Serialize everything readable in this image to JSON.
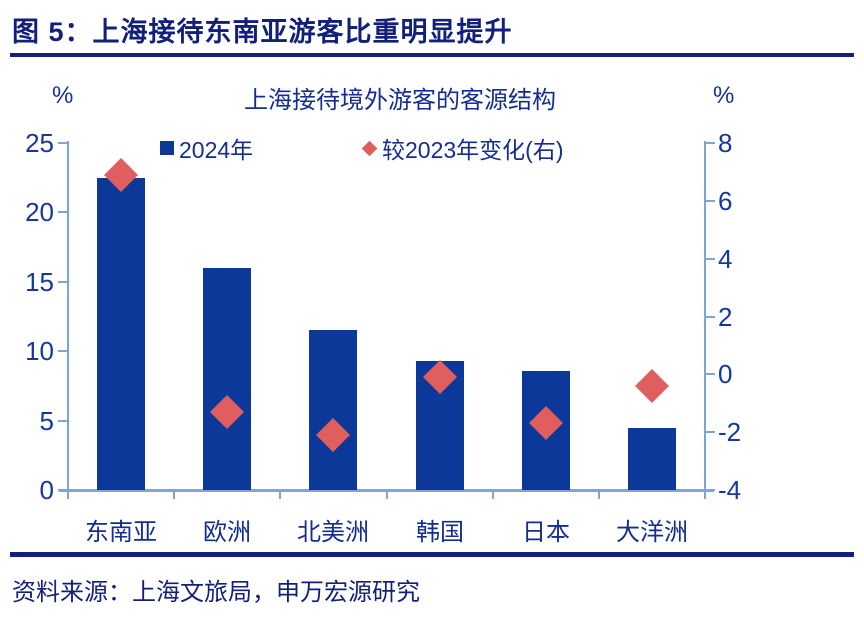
{
  "figure": {
    "title": "图 5：上海接待东南亚游客比重明显提升",
    "source": "资料来源：上海文旅局，申万宏源研究"
  },
  "chart_data": {
    "type": "bar",
    "subtype": "bar-with-scatter-diamond-combo",
    "title": "上海接待境外游客的客源结构",
    "categories": [
      "东南亚",
      "欧洲",
      "北美洲",
      "韩国",
      "日本",
      "大洋洲"
    ],
    "series": [
      {
        "name": "2024年",
        "type": "bar",
        "axis": "left",
        "values": [
          22.5,
          16.0,
          11.5,
          9.3,
          8.6,
          4.5
        ]
      },
      {
        "name": "较2023年变化(右)",
        "type": "scatter",
        "marker": "diamond",
        "axis": "right",
        "values": [
          6.9,
          -1.3,
          -2.1,
          -0.1,
          -1.7,
          -0.4
        ]
      }
    ],
    "left_axis": {
      "label": "%",
      "ticks": [
        0,
        5,
        10,
        15,
        20,
        25
      ],
      "range": [
        0,
        25
      ]
    },
    "right_axis": {
      "label": "%",
      "ticks": [
        -4,
        -2,
        0,
        2,
        4,
        6,
        8
      ],
      "range": [
        -4,
        8
      ]
    },
    "legend_position": "top",
    "grid": false,
    "colors": {
      "bar": "#0B3899",
      "diamond": "#E05E5E",
      "axis_line": "#7CA5D8",
      "tick_text": "#1737A0",
      "navy_text": "#142D92",
      "title_navy": "#121F7D"
    }
  }
}
